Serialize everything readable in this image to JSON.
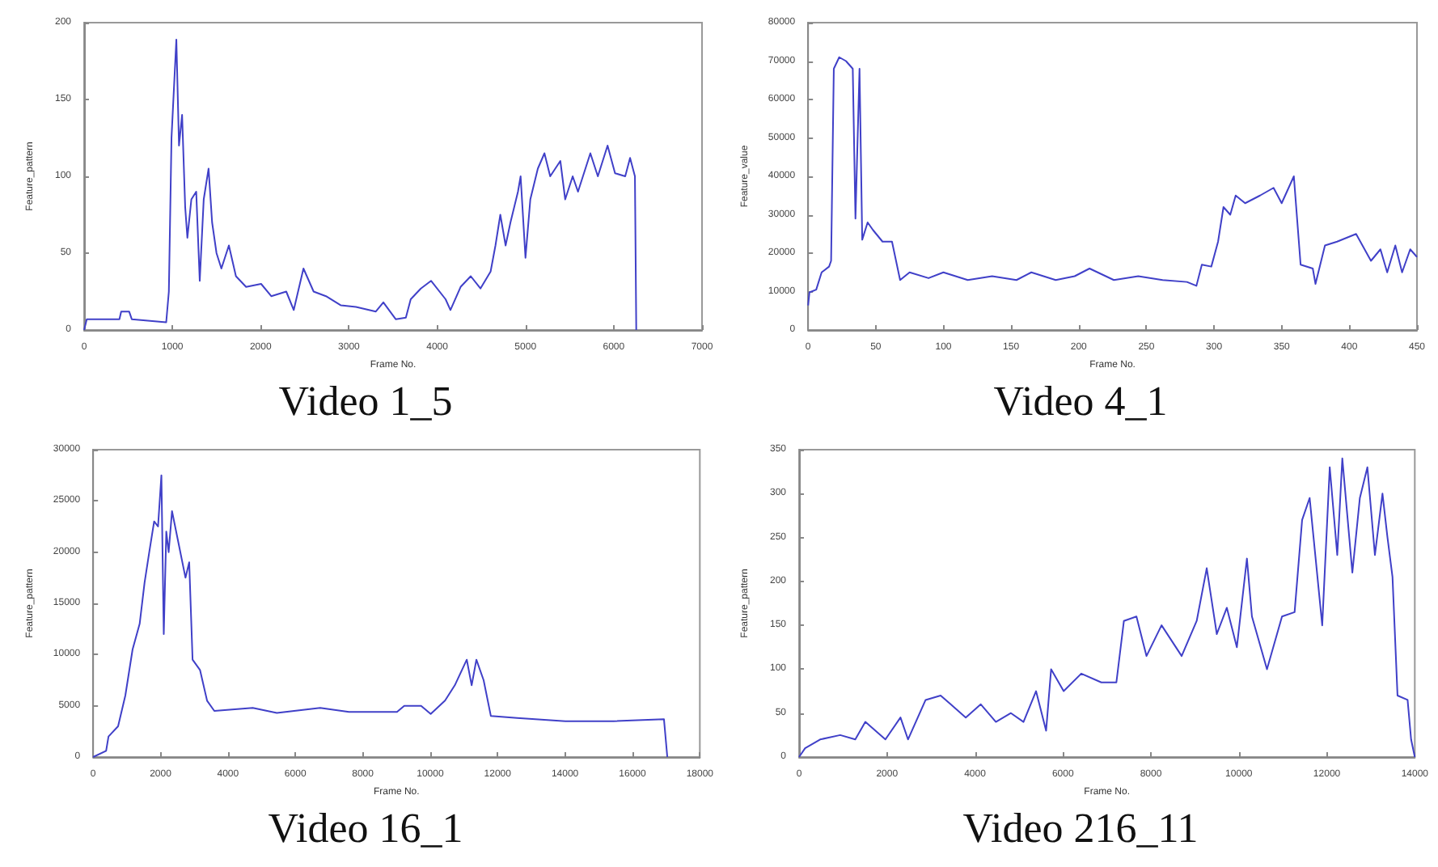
{
  "chart_data": [
    {
      "type": "line",
      "title": "Video 1_5",
      "xlabel": "Frame No.",
      "ylabel": "Feature_pattern",
      "xlim": [
        0,
        7000
      ],
      "xticks": [
        0,
        1000,
        2000,
        3000,
        4000,
        5000,
        6000,
        7000
      ],
      "ylim": [
        0,
        200
      ],
      "yticks": [
        0,
        50,
        100,
        150,
        200
      ],
      "grid": false,
      "marker": "none",
      "line_style": "solid",
      "series": [
        {
          "color": "#4040c8",
          "x": [
            0,
            30,
            400,
            420,
            510,
            540,
            930,
            960,
            990,
            1045,
            1075,
            1110,
            1145,
            1170,
            1215,
            1270,
            1310,
            1355,
            1410,
            1450,
            1500,
            1555,
            1640,
            1720,
            1835,
            2005,
            2120,
            2290,
            2375,
            2485,
            2600,
            2740,
            2910,
            3080,
            3305,
            3390,
            3530,
            3645,
            3700,
            3815,
            3930,
            4095,
            4150,
            4265,
            4380,
            4490,
            4605,
            4660,
            4715,
            4775,
            4830,
            4915,
            4945,
            5000,
            5055,
            5140,
            5215,
            5280,
            5395,
            5450,
            5535,
            5595,
            5735,
            5820,
            5930,
            6015,
            6130,
            6185,
            6240,
            6255
          ],
          "values": [
            0,
            7,
            7,
            12,
            12,
            7,
            5,
            25,
            125,
            189,
            120,
            140,
            80,
            60,
            85,
            90,
            32,
            85,
            105,
            70,
            50,
            40,
            55,
            35,
            28,
            30,
            22,
            25,
            13,
            40,
            25,
            22,
            16,
            15,
            12,
            18,
            7,
            8,
            20,
            27,
            32,
            20,
            13,
            28,
            35,
            27,
            38,
            55,
            75,
            55,
            70,
            90,
            100,
            47,
            85,
            105,
            115,
            100,
            110,
            85,
            100,
            90,
            115,
            100,
            120,
            102,
            100,
            112,
            100,
            0
          ]
        }
      ]
    },
    {
      "type": "line",
      "title": "Video 4_1",
      "xlabel": "Frame No.",
      "ylabel": "Feature_value",
      "xlim": [
        0,
        450
      ],
      "xticks": [
        0,
        50,
        100,
        150,
        200,
        250,
        300,
        350,
        400,
        450
      ],
      "ylim": [
        0,
        80000
      ],
      "yticks": [
        0,
        10000,
        20000,
        30000,
        40000,
        50000,
        60000,
        70000,
        80000
      ],
      "grid": false,
      "marker": "none",
      "line_style": "solid",
      "series": [
        {
          "color": "#4040c8",
          "x": [
            0,
            1,
            6,
            10,
            15.5,
            17,
            19,
            23,
            28,
            33,
            35,
            38,
            40,
            44,
            48,
            55,
            62,
            68,
            75,
            89,
            100,
            118,
            136,
            154,
            165,
            183,
            197,
            208,
            226,
            244,
            262,
            280,
            287,
            291,
            298,
            303,
            307,
            312,
            316,
            323,
            334,
            344,
            350,
            359,
            364,
            373,
            375,
            382,
            391,
            405,
            416,
            423,
            428,
            434,
            439,
            445,
            450
          ],
          "values": [
            6400,
            9800,
            10500,
            15000,
            16500,
            18000,
            68000,
            71000,
            70000,
            68000,
            29000,
            68000,
            23500,
            28000,
            26000,
            23000,
            23000,
            13000,
            15000,
            13500,
            15000,
            13000,
            14000,
            13000,
            15000,
            13000,
            14000,
            16000,
            13000,
            14000,
            13000,
            12500,
            11500,
            17000,
            16500,
            23000,
            32000,
            30000,
            35000,
            33000,
            35000,
            37000,
            33000,
            40000,
            17000,
            16000,
            12000,
            22000,
            23000,
            25000,
            18000,
            21000,
            15000,
            22000,
            15000,
            21000,
            19000
          ]
        }
      ]
    },
    {
      "type": "line",
      "title": "Video 16_1",
      "xlabel": "Frame No.",
      "ylabel": "Feature_pattern",
      "xlim": [
        0,
        18000
      ],
      "xticks": [
        0,
        2000,
        4000,
        6000,
        8000,
        10000,
        12000,
        14000,
        16000,
        18000
      ],
      "ylim": [
        0,
        30000
      ],
      "yticks": [
        0,
        5000,
        10000,
        15000,
        20000,
        25000,
        30000
      ],
      "grid": false,
      "marker": "none",
      "line_style": "solid",
      "series": [
        {
          "color": "#4040c8",
          "x": [
            0,
            385,
            456,
            740,
            955,
            1170,
            1380,
            1525,
            1665,
            1810,
            1925,
            2025,
            2095,
            2170,
            2240,
            2340,
            2525,
            2740,
            2850,
            2950,
            3170,
            3380,
            3595,
            4735,
            5450,
            6735,
            7590,
            9015,
            9230,
            9730,
            10015,
            10440,
            10730,
            11085,
            11230,
            11370,
            11585,
            11800,
            12580,
            14010,
            15440,
            16935,
            17035
          ],
          "values": [
            0,
            600,
            2000,
            3000,
            6000,
            10500,
            13000,
            17000,
            20000,
            23000,
            22500,
            27500,
            12000,
            22000,
            20000,
            24000,
            21000,
            17500,
            19000,
            9500,
            8500,
            5500,
            4500,
            4800,
            4300,
            4800,
            4400,
            4400,
            5000,
            5000,
            4200,
            5500,
            7000,
            9500,
            7000,
            9500,
            7500,
            4000,
            3800,
            3500,
            3500,
            3700,
            0
          ]
        }
      ]
    },
    {
      "type": "line",
      "title": "Video 216_11",
      "xlabel": "Frame No.",
      "ylabel": "Feature_pattern",
      "xlim": [
        0,
        14000
      ],
      "xticks": [
        0,
        2000,
        4000,
        6000,
        8000,
        10000,
        12000,
        14000
      ],
      "ylim": [
        0,
        350
      ],
      "yticks": [
        0,
        50,
        100,
        150,
        200,
        250,
        300,
        350
      ],
      "grid": false,
      "marker": "none",
      "line_style": "solid",
      "series": [
        {
          "color": "#4040c8",
          "x": [
            0,
            137,
            479,
            936,
            1278,
            1507,
            1963,
            2306,
            2477,
            2877,
            3219,
            3447,
            3790,
            4132,
            4475,
            4817,
            5103,
            5388,
            5617,
            5731,
            6016,
            6416,
            6872,
            7215,
            7386,
            7671,
            7900,
            8242,
            8699,
            9041,
            9269,
            9498,
            9726,
            9954,
            10183,
            10297,
            10639,
            10981,
            11267,
            11438,
            11609,
            11895,
            12066,
            12237,
            12352,
            12580,
            12751,
            12922,
            13093,
            13265,
            13379,
            13493,
            13607,
            13836,
            13916,
            14000
          ],
          "values": [
            0,
            10,
            20,
            25,
            20,
            40,
            20,
            45,
            20,
            65,
            70,
            60,
            45,
            60,
            40,
            50,
            40,
            75,
            30,
            100,
            75,
            95,
            85,
            85,
            155,
            160,
            115,
            150,
            115,
            155,
            215,
            140,
            170,
            125,
            226,
            160,
            100,
            160,
            165,
            270,
            295,
            150,
            330,
            230,
            340,
            210,
            295,
            330,
            230,
            300,
            250,
            205,
            70,
            65,
            20,
            0
          ]
        }
      ]
    }
  ]
}
